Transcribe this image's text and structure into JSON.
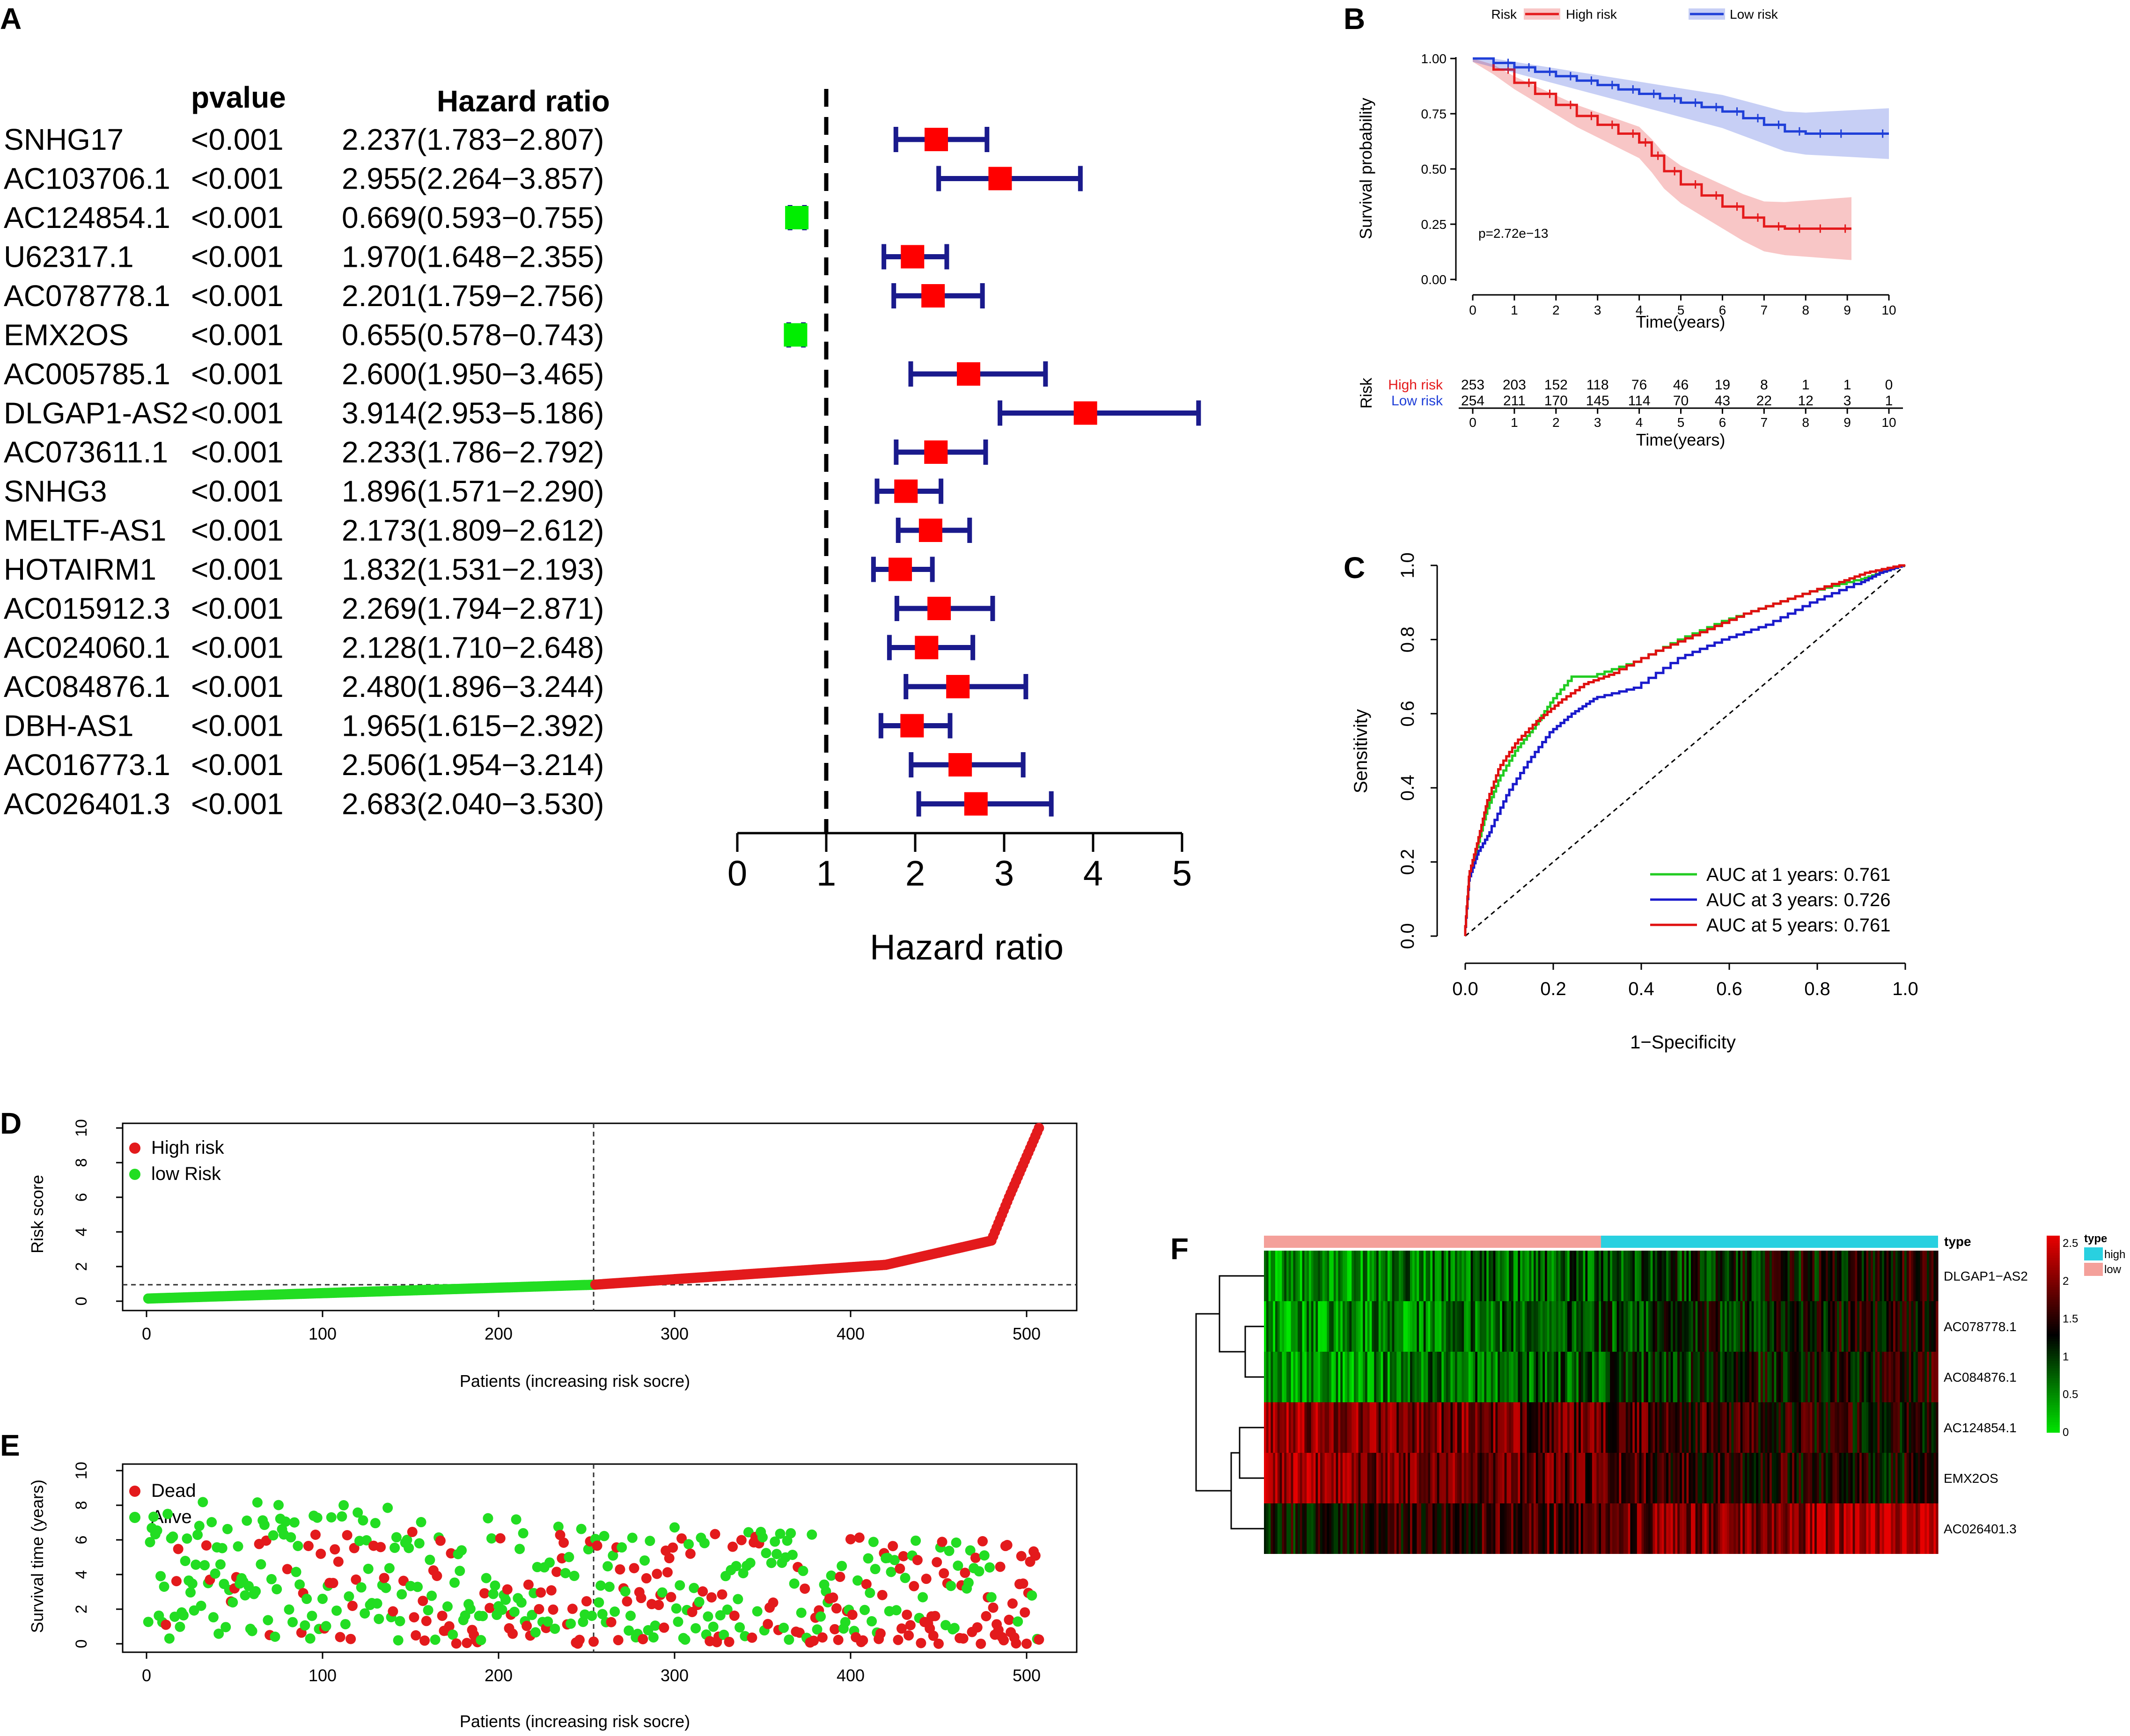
{
  "chart_data": [
    {
      "panel": "A",
      "type": "forest",
      "columns": {
        "pvalue": "pvalue",
        "hr": "Hazard ratio"
      },
      "xlabel": "Hazard ratio",
      "xlim": [
        0,
        5
      ],
      "xticks": [
        "0",
        "1",
        "2",
        "3",
        "4",
        "5"
      ],
      "rows": [
        {
          "gene": "SNHG17",
          "p": "<0.001",
          "text": "2.237(1.783−2.807)",
          "hr": 2.237,
          "lo": 1.783,
          "hi": 2.807,
          "color": "#ff0000"
        },
        {
          "gene": "AC103706.1",
          "p": "<0.001",
          "text": "2.955(2.264−3.857)",
          "hr": 2.955,
          "lo": 2.264,
          "hi": 3.857,
          "color": "#ff0000"
        },
        {
          "gene": "AC124854.1",
          "p": "<0.001",
          "text": "0.669(0.593−0.755)",
          "hr": 0.669,
          "lo": 0.593,
          "hi": 0.755,
          "color": "#00ee00"
        },
        {
          "gene": "U62317.1",
          "p": "<0.001",
          "text": "1.970(1.648−2.355)",
          "hr": 1.97,
          "lo": 1.648,
          "hi": 2.355,
          "color": "#ff0000"
        },
        {
          "gene": "AC078778.1",
          "p": "<0.001",
          "text": "2.201(1.759−2.756)",
          "hr": 2.201,
          "lo": 1.759,
          "hi": 2.756,
          "color": "#ff0000"
        },
        {
          "gene": "EMX2OS",
          "p": "<0.001",
          "text": "0.655(0.578−0.743)",
          "hr": 0.655,
          "lo": 0.578,
          "hi": 0.743,
          "color": "#00ee00"
        },
        {
          "gene": "AC005785.1",
          "p": "<0.001",
          "text": "2.600(1.950−3.465)",
          "hr": 2.6,
          "lo": 1.95,
          "hi": 3.465,
          "color": "#ff0000"
        },
        {
          "gene": "DLGAP1-AS2",
          "p": "<0.001",
          "text": "3.914(2.953−5.186)",
          "hr": 3.914,
          "lo": 2.953,
          "hi": 5.186,
          "color": "#ff0000"
        },
        {
          "gene": "AC073611.1",
          "p": "<0.001",
          "text": "2.233(1.786−2.792)",
          "hr": 2.233,
          "lo": 1.786,
          "hi": 2.792,
          "color": "#ff0000"
        },
        {
          "gene": "SNHG3",
          "p": "<0.001",
          "text": "1.896(1.571−2.290)",
          "hr": 1.896,
          "lo": 1.571,
          "hi": 2.29,
          "color": "#ff0000"
        },
        {
          "gene": "MELTF-AS1",
          "p": "<0.001",
          "text": "2.173(1.809−2.612)",
          "hr": 2.173,
          "lo": 1.809,
          "hi": 2.612,
          "color": "#ff0000"
        },
        {
          "gene": "HOTAIRM1",
          "p": "<0.001",
          "text": "1.832(1.531−2.193)",
          "hr": 1.832,
          "lo": 1.531,
          "hi": 2.193,
          "color": "#ff0000"
        },
        {
          "gene": "AC015912.3",
          "p": "<0.001",
          "text": "2.269(1.794−2.871)",
          "hr": 2.269,
          "lo": 1.794,
          "hi": 2.871,
          "color": "#ff0000"
        },
        {
          "gene": "AC024060.1",
          "p": "<0.001",
          "text": "2.128(1.710−2.648)",
          "hr": 2.128,
          "lo": 1.71,
          "hi": 2.648,
          "color": "#ff0000"
        },
        {
          "gene": "AC084876.1",
          "p": "<0.001",
          "text": "2.480(1.896−3.244)",
          "hr": 2.48,
          "lo": 1.896,
          "hi": 3.244,
          "color": "#ff0000"
        },
        {
          "gene": "DBH-AS1",
          "p": "<0.001",
          "text": "1.965(1.615−2.392)",
          "hr": 1.965,
          "lo": 1.615,
          "hi": 2.392,
          "color": "#ff0000"
        },
        {
          "gene": "AC016773.1",
          "p": "<0.001",
          "text": "2.506(1.954−3.214)",
          "hr": 2.506,
          "lo": 1.954,
          "hi": 3.214,
          "color": "#ff0000"
        },
        {
          "gene": "AC026401.3",
          "p": "<0.001",
          "text": "2.683(2.040−3.530)",
          "hr": 2.683,
          "lo": 2.04,
          "hi": 3.53,
          "color": "#ff0000"
        }
      ]
    },
    {
      "panel": "B",
      "type": "line",
      "subtype": "kaplan-meier",
      "legend_title": "Risk",
      "xlabel": "Time(years)",
      "ylabel": "Survival probability",
      "xlim": [
        0,
        10
      ],
      "ylim": [
        0,
        1
      ],
      "xticks": [
        "0",
        "1",
        "2",
        "3",
        "4",
        "5",
        "6",
        "7",
        "8",
        "9",
        "10"
      ],
      "yticks": [
        "0.00",
        "0.25",
        "0.50",
        "0.75",
        "1.00"
      ],
      "annotation": "p=2.72e−13",
      "series": [
        {
          "name": "High risk",
          "color": "#e41a1c",
          "x": [
            0,
            0.5,
            1,
            1.5,
            2,
            2.5,
            3,
            3.5,
            4,
            4.3,
            4.6,
            5,
            5.5,
            6,
            6.5,
            7,
            7.5,
            8,
            8.5,
            9.1
          ],
          "y": [
            1.0,
            0.95,
            0.89,
            0.84,
            0.79,
            0.74,
            0.7,
            0.66,
            0.62,
            0.56,
            0.49,
            0.43,
            0.38,
            0.33,
            0.28,
            0.24,
            0.23,
            0.23,
            0.23,
            0.23
          ]
        },
        {
          "name": "Low risk",
          "color": "#1f3fd8",
          "x": [
            0,
            0.5,
            1,
            1.5,
            2,
            2.5,
            3,
            3.5,
            4,
            4.5,
            5,
            5.5,
            6,
            6.5,
            7,
            7.5,
            8,
            8.5,
            9,
            10
          ],
          "y": [
            1.0,
            0.98,
            0.96,
            0.94,
            0.92,
            0.9,
            0.88,
            0.86,
            0.84,
            0.82,
            0.8,
            0.78,
            0.76,
            0.73,
            0.7,
            0.67,
            0.66,
            0.66,
            0.66,
            0.66
          ]
        }
      ],
      "risk_table": {
        "title": "Risk",
        "xlabel": "Time(years)",
        "times": [
          "0",
          "1",
          "2",
          "3",
          "4",
          "5",
          "6",
          "7",
          "8",
          "9",
          "10"
        ],
        "rows": [
          {
            "name": "High risk",
            "color": "#e41a1c",
            "values": [
              "253",
              "203",
              "152",
              "118",
              "76",
              "46",
              "19",
              "8",
              "1",
              "1",
              "0"
            ]
          },
          {
            "name": "Low risk",
            "color": "#1f3fd8",
            "values": [
              "254",
              "211",
              "170",
              "145",
              "114",
              "70",
              "43",
              "22",
              "12",
              "3",
              "1"
            ]
          }
        ]
      }
    },
    {
      "panel": "C",
      "type": "line",
      "subtype": "roc",
      "xlabel": "1−Specificity",
      "ylabel": "Sensitivity",
      "xlim": [
        0,
        1
      ],
      "ylim": [
        0,
        1
      ],
      "xticks": [
        "0.0",
        "0.2",
        "0.4",
        "0.6",
        "0.8",
        "1.0"
      ],
      "yticks": [
        "0.0",
        "0.2",
        "0.4",
        "0.6",
        "0.8",
        "1.0"
      ],
      "series": [
        {
          "name": "AUC at 1 years: 0.761",
          "color": "#22cc22",
          "x": [
            0,
            0.01,
            0.03,
            0.05,
            0.08,
            0.12,
            0.16,
            0.2,
            0.25,
            0.3,
            0.4,
            0.5,
            0.6,
            0.7,
            0.8,
            0.9,
            0.95,
            1
          ],
          "y": [
            0,
            0.15,
            0.24,
            0.33,
            0.42,
            0.5,
            0.56,
            0.63,
            0.7,
            0.7,
            0.74,
            0.8,
            0.85,
            0.89,
            0.93,
            0.96,
            0.98,
            1
          ]
        },
        {
          "name": "AUC at 3 years: 0.726",
          "color": "#1a1acc",
          "x": [
            0,
            0.01,
            0.03,
            0.06,
            0.1,
            0.15,
            0.2,
            0.25,
            0.3,
            0.4,
            0.5,
            0.6,
            0.7,
            0.8,
            0.9,
            0.95,
            1
          ],
          "y": [
            0,
            0.15,
            0.22,
            0.28,
            0.38,
            0.47,
            0.55,
            0.6,
            0.64,
            0.67,
            0.75,
            0.8,
            0.84,
            0.9,
            0.95,
            0.98,
            1
          ]
        },
        {
          "name": "AUC at 5 years: 0.761",
          "color": "#e01010",
          "x": [
            0,
            0.01,
            0.03,
            0.05,
            0.08,
            0.12,
            0.17,
            0.22,
            0.28,
            0.35,
            0.45,
            0.55,
            0.65,
            0.75,
            0.85,
            0.92,
            1
          ],
          "y": [
            0,
            0.16,
            0.25,
            0.35,
            0.45,
            0.52,
            0.58,
            0.63,
            0.68,
            0.71,
            0.77,
            0.82,
            0.87,
            0.91,
            0.95,
            0.98,
            1
          ]
        }
      ]
    },
    {
      "panel": "D",
      "type": "scatter",
      "xlabel": "Patients (increasing risk socre)",
      "ylabel": "Risk score",
      "xlim": [
        0,
        530
      ],
      "ylim": [
        0,
        10
      ],
      "xticks": [
        "0",
        "100",
        "200",
        "300",
        "400",
        "500"
      ],
      "yticks": [
        "0",
        "2",
        "4",
        "6",
        "8",
        "10"
      ],
      "cutoff_x": 254,
      "cutoff_y": 0.95,
      "n": 507,
      "legend": [
        {
          "name": "High risk",
          "color": "#e31a1c"
        },
        {
          "name": "low Risk",
          "color": "#22dd22"
        }
      ]
    },
    {
      "panel": "E",
      "type": "scatter",
      "xlabel": "Patients (increasing risk socre)",
      "ylabel": "Survival time (years)",
      "xlim": [
        0,
        530
      ],
      "ylim": [
        0,
        10
      ],
      "xticks": [
        "0",
        "100",
        "200",
        "300",
        "400",
        "500"
      ],
      "yticks": [
        "0",
        "2",
        "4",
        "6",
        "8",
        "10"
      ],
      "cutoff_x": 254,
      "n": 507,
      "legend": [
        {
          "name": "Dead",
          "color": "#e31a1c"
        },
        {
          "name": "Alive",
          "color": "#22dd22"
        }
      ]
    },
    {
      "panel": "F",
      "type": "heatmap",
      "annotation_label": "type",
      "rows": [
        "DLGAP1−AS2",
        "AC078778.1",
        "AC084876.1",
        "AC124854.1",
        "EMX2OS",
        "AC026401.3"
      ],
      "row_high_in": [
        "high",
        "high",
        "high",
        "low",
        "low",
        "high"
      ],
      "groups": [
        {
          "name": "low",
          "color": "#f4a09a"
        },
        {
          "name": "high",
          "color": "#29d0e0"
        }
      ],
      "colorbar_ticks": [
        "2.5",
        "2",
        "1.5",
        "1",
        "0.5",
        "0"
      ],
      "scale_range": [
        0,
        2.6
      ]
    }
  ],
  "panels": {
    "a": "A",
    "b": "B",
    "c": "C",
    "d": "D",
    "e": "E",
    "f": "F"
  }
}
